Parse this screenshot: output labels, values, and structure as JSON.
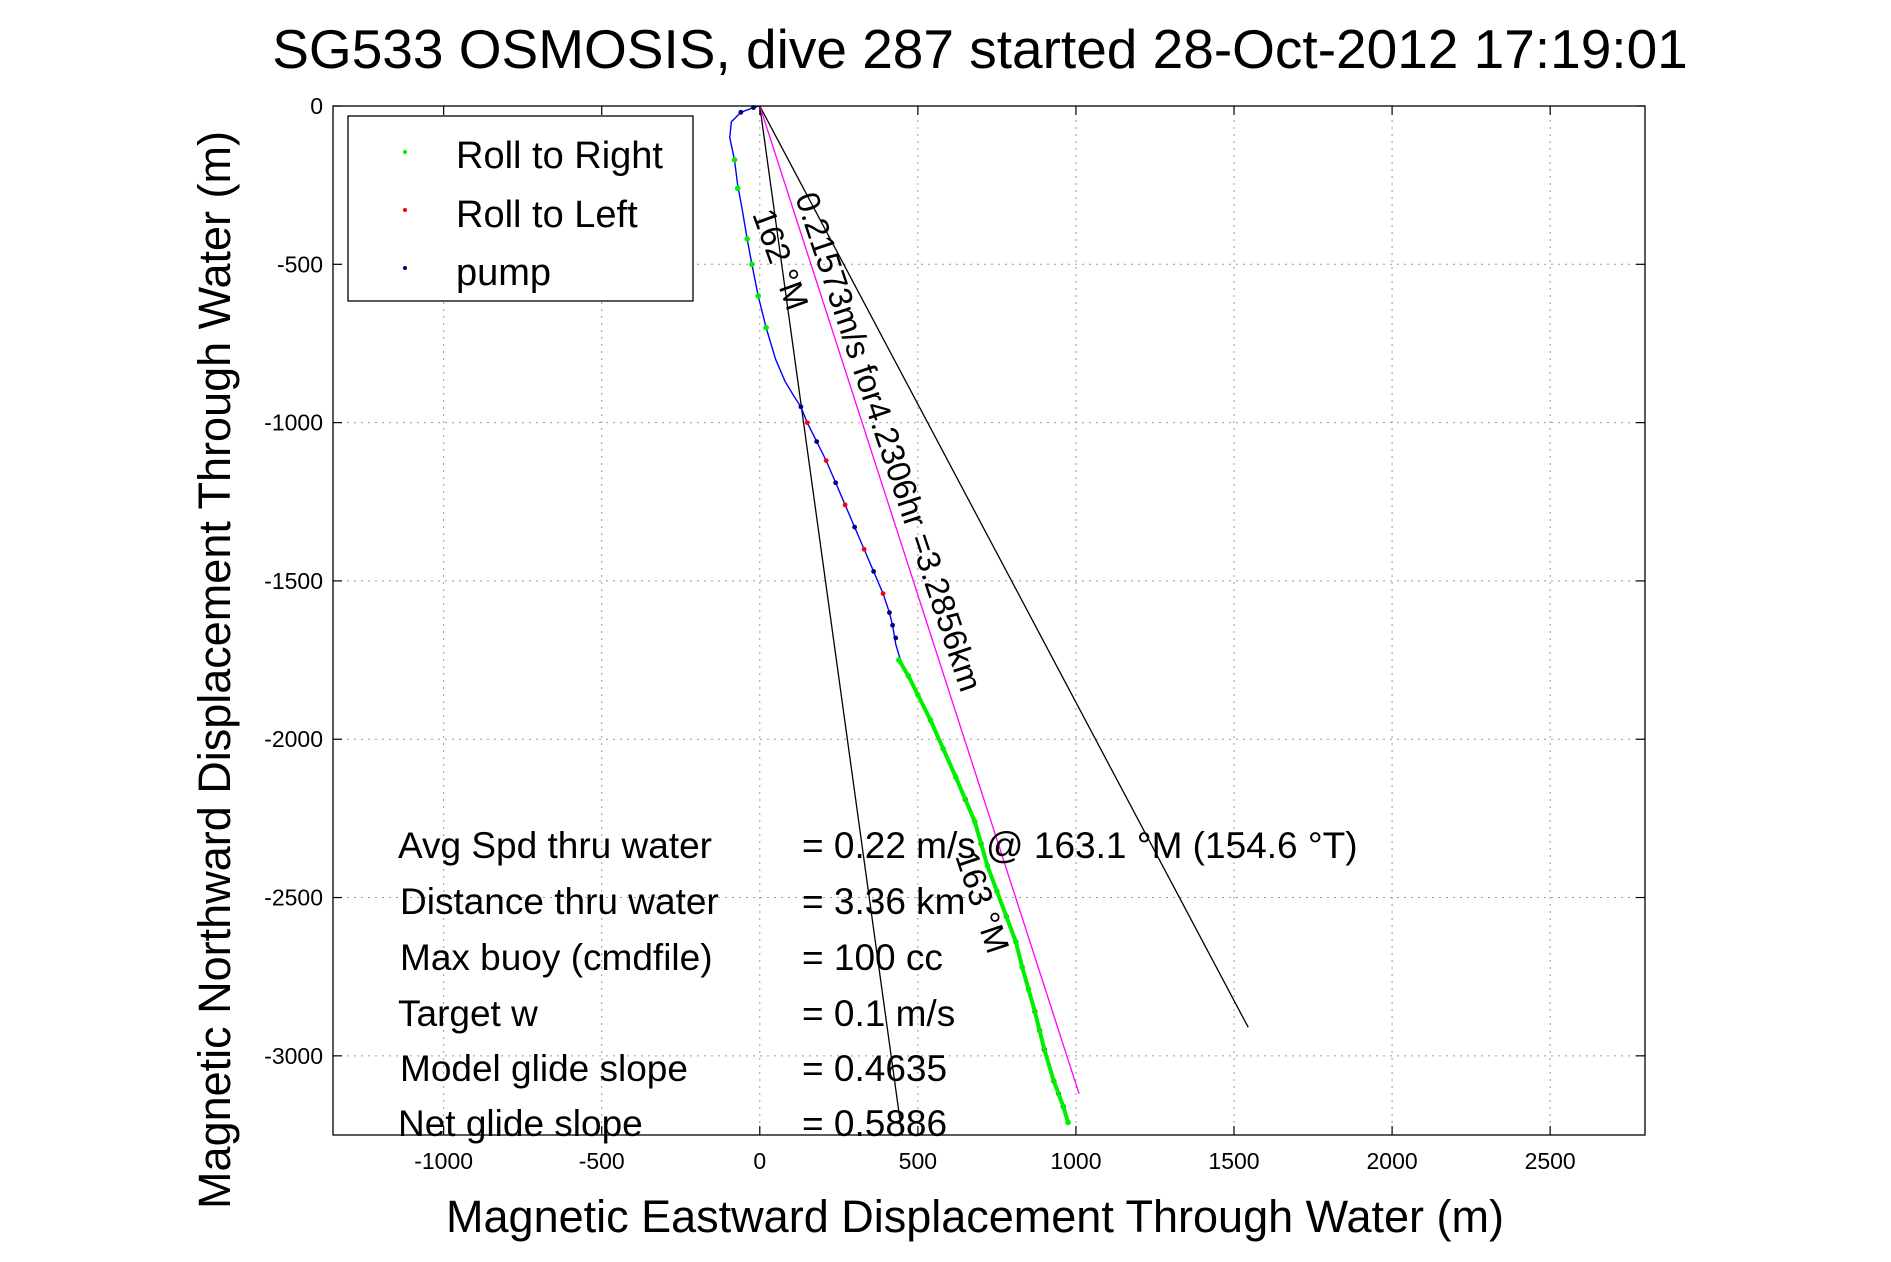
{
  "chart_data": {
    "type": "scatter",
    "title": "SG533 OSMOSIS, dive 287 started 28-Oct-2012 17:19:01",
    "xlabel": "Magnetic Eastward Displacement Through Water (m)",
    "ylabel": "Magnetic Northward Displacement Through Water (m)",
    "xlim": [
      -1350,
      2800
    ],
    "ylim": [
      -3250,
      0
    ],
    "x_ticks": [
      -1000,
      -500,
      0,
      500,
      1000,
      1500,
      2000,
      2500
    ],
    "y_ticks": [
      0,
      -500,
      -1000,
      -1500,
      -2000,
      -2500,
      -3000
    ],
    "x_tick_labels": [
      "-1000",
      "-500",
      "0",
      "500",
      "1000",
      "1500",
      "2000",
      "2500"
    ],
    "y_tick_labels": [
      "0",
      "-500",
      "-1000",
      "-1500",
      "-2000",
      "-2500",
      "-3000"
    ],
    "grid": true,
    "legend_position": "top-left",
    "legend": [
      {
        "label": "Roll to Right",
        "color": "#00ee00"
      },
      {
        "label": "Roll to Left",
        "color": "#ff0000"
      },
      {
        "label": "pump",
        "color": "#000080"
      }
    ],
    "series": [
      {
        "name": "track",
        "color": "#0000ff",
        "x": [
          0,
          -20,
          -60,
          -90,
          -95,
          -80,
          -70,
          -55,
          -40,
          -25,
          -5,
          20,
          50,
          80,
          110,
          130,
          150,
          180,
          210,
          240,
          270,
          300,
          330,
          360,
          390,
          410,
          420,
          430,
          445,
          470,
          500,
          540,
          580,
          620,
          650,
          680,
          700,
          720,
          750,
          780,
          810,
          830,
          850,
          870,
          885,
          900,
          915,
          930,
          945,
          960,
          975
        ],
        "y": [
          0,
          -5,
          -20,
          -50,
          -100,
          -170,
          -250,
          -330,
          -420,
          -500,
          -600,
          -700,
          -800,
          -870,
          -920,
          -950,
          -1000,
          -1060,
          -1120,
          -1190,
          -1260,
          -1330,
          -1400,
          -1470,
          -1540,
          -1600,
          -1640,
          -1700,
          -1750,
          -1800,
          -1860,
          -1940,
          -2030,
          -2120,
          -2190,
          -2260,
          -2330,
          -2400,
          -2480,
          -2560,
          -2640,
          -2720,
          -2790,
          -2860,
          -2920,
          -2980,
          -3040,
          -3080,
          -3120,
          -3160,
          -3210
        ]
      },
      {
        "name": "Roll to Right",
        "color": "#00ee00",
        "x": [
          -80,
          -70,
          -40,
          -25,
          -5,
          20,
          440,
          470,
          500,
          540,
          580,
          620,
          650,
          680,
          700,
          720,
          750,
          780,
          810,
          830,
          850,
          870,
          885,
          900,
          930,
          960,
          975
        ],
        "y": [
          -170,
          -260,
          -420,
          -500,
          -600,
          -700,
          -1750,
          -1800,
          -1860,
          -1940,
          -2030,
          -2120,
          -2190,
          -2260,
          -2330,
          -2400,
          -2480,
          -2560,
          -2640,
          -2720,
          -2790,
          -2860,
          -2920,
          -2980,
          -3080,
          -3160,
          -3210
        ]
      },
      {
        "name": "Roll to Left",
        "color": "#ff0000",
        "x": [
          150,
          210,
          270,
          330,
          390,
          650,
          700,
          780,
          870,
          930
        ],
        "y": [
          -1000,
          -1120,
          -1260,
          -1400,
          -1540,
          -2190,
          -2330,
          -2560,
          -2860,
          -3080
        ]
      },
      {
        "name": "pump",
        "color": "#000080",
        "x": [
          -60,
          -20,
          130,
          180,
          240,
          300,
          360,
          410,
          420,
          430,
          900,
          945,
          960
        ],
        "y": [
          -20,
          -5,
          -950,
          -1060,
          -1190,
          -1330,
          -1470,
          -1600,
          -1640,
          -1680,
          -2980,
          -3120,
          -3160
        ]
      }
    ],
    "reference_lines": [
      {
        "name": "heading-line-162",
        "color": "#000000",
        "x": [
          0,
          450
        ],
        "y": [
          0,
          -3250
        ]
      },
      {
        "name": "heading-line-outer",
        "color": "#000000",
        "x": [
          0,
          1545
        ],
        "y": [
          0,
          -2910
        ]
      },
      {
        "name": "heading-line-163",
        "color": "#ff00ff",
        "x": [
          0,
          1010
        ],
        "y": [
          0,
          -3120
        ]
      }
    ],
    "annotations": {
      "heading_162": "162 °M",
      "speed_time": "0.21573m/s for4.2306hr =3.2856km",
      "heading_163": "163 °M"
    },
    "stats": [
      {
        "label": "Avg Spd thru water",
        "value": "=  0.22 m/s @ 163.1 °M (154.6 °T)"
      },
      {
        "label": "Distance thru water",
        "value": "=  3.36 km"
      },
      {
        "label": "Max buoy (cmdfile)",
        "value": "= 100 cc"
      },
      {
        "label": "Target w",
        "value": "= 0.1 m/s"
      },
      {
        "label": "Model glide slope",
        "value": "= 0.4635"
      },
      {
        "label": "Net glide slope",
        "value": "= 0.5886"
      }
    ]
  }
}
